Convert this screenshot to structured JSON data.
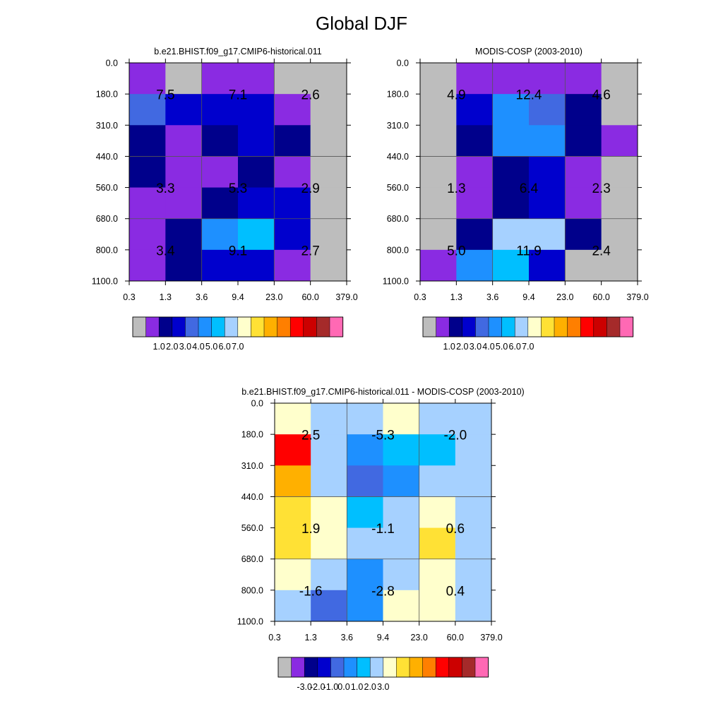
{
  "page": {
    "title": "Global DJF"
  },
  "palette": [
    "#BDBDBD",
    "#8A2BE2",
    "#00008B",
    "#0000CD",
    "#4169E1",
    "#1E90FF",
    "#00BFFF",
    "#A6D1FF",
    "#FFFFCC",
    "#FFE135",
    "#FFB000",
    "#FF7F00",
    "#FF0000",
    "#CC0000",
    "#A52A2A",
    "#FF69B4"
  ],
  "chart_data": [
    {
      "type": "heatmap",
      "title": "b.e21.BHIST.f09_g17.CMIP6-historical.011",
      "x_tick_labels": [
        "0.3",
        "1.3",
        "3.6",
        "9.4",
        "23.0",
        "60.0",
        "379.0"
      ],
      "y_tick_labels": [
        "0.0",
        "180.0",
        "310.0",
        "440.0",
        "560.0",
        "680.0",
        "800.0",
        "1100.0"
      ],
      "cell_color_index_rows_top_to_bottom": [
        [
          1,
          0,
          1,
          1,
          0,
          0
        ],
        [
          4,
          3,
          3,
          3,
          1,
          0
        ],
        [
          2,
          1,
          2,
          3,
          2,
          0
        ],
        [
          2,
          1,
          1,
          2,
          1,
          0
        ],
        [
          1,
          1,
          2,
          3,
          3,
          0
        ],
        [
          1,
          2,
          5,
          6,
          3,
          0
        ],
        [
          1,
          2,
          3,
          3,
          1,
          0
        ]
      ],
      "box_labels": [
        [
          "7.5",
          "7.1",
          "2.6"
        ],
        [
          "3.3",
          "5.3",
          "2.9"
        ],
        [
          "3.4",
          "9.1",
          "2.7"
        ]
      ],
      "colorbar": {
        "ticks": [
          "1.0",
          "2.0",
          "3.0",
          "4.0",
          "5.0",
          "6.0",
          "7.0"
        ]
      }
    },
    {
      "type": "heatmap",
      "title": "MODIS-COSP (2003-2010)",
      "x_tick_labels": [
        "0.3",
        "1.3",
        "3.6",
        "9.4",
        "23.0",
        "60.0",
        "379.0"
      ],
      "y_tick_labels": [
        "0.0",
        "180.0",
        "310.0",
        "440.0",
        "560.0",
        "680.0",
        "800.0",
        "1100.0"
      ],
      "cell_color_index_rows_top_to_bottom": [
        [
          0,
          1,
          1,
          1,
          1,
          0
        ],
        [
          0,
          3,
          5,
          4,
          2,
          0
        ],
        [
          0,
          2,
          5,
          5,
          2,
          1
        ],
        [
          0,
          1,
          2,
          3,
          1,
          0
        ],
        [
          0,
          1,
          2,
          3,
          1,
          0
        ],
        [
          0,
          2,
          7,
          7,
          2,
          0
        ],
        [
          1,
          5,
          6,
          3,
          0,
          0
        ]
      ],
      "box_labels": [
        [
          "4.9",
          "12.4",
          "4.6"
        ],
        [
          "1.3",
          "6.4",
          "2.3"
        ],
        [
          "5.0",
          "11.9",
          "2.4"
        ]
      ],
      "colorbar": {
        "ticks": [
          "1.0",
          "2.0",
          "3.0",
          "4.0",
          "5.0",
          "6.0",
          "7.0"
        ]
      }
    },
    {
      "type": "heatmap",
      "title": "b.e21.BHIST.f09_g17.CMIP6-historical.011 - MODIS-COSP (2003-2010)",
      "x_tick_labels": [
        "0.3",
        "1.3",
        "3.6",
        "9.4",
        "23.0",
        "60.0",
        "379.0"
      ],
      "y_tick_labels": [
        "0.0",
        "180.0",
        "310.0",
        "440.0",
        "560.0",
        "680.0",
        "800.0",
        "1100.0"
      ],
      "cell_color_index_rows_top_to_bottom": [
        [
          8,
          7,
          7,
          8,
          7,
          7
        ],
        [
          12,
          7,
          5,
          6,
          6,
          7
        ],
        [
          10,
          7,
          4,
          5,
          7,
          7
        ],
        [
          9,
          8,
          6,
          7,
          8,
          7
        ],
        [
          9,
          8,
          7,
          7,
          9,
          7
        ],
        [
          8,
          7,
          5,
          7,
          8,
          7
        ],
        [
          7,
          4,
          5,
          8,
          8,
          7
        ]
      ],
      "box_labels": [
        [
          "2.5",
          "-5.3",
          "-2.0"
        ],
        [
          "1.9",
          "-1.1",
          "0.6"
        ],
        [
          "-1.6",
          "-2.8",
          "0.4"
        ]
      ],
      "colorbar": {
        "ticks": [
          "-3.0",
          "-2.0",
          "-1.0",
          "0.0",
          "1.0",
          "2.0",
          "3.0"
        ]
      }
    }
  ]
}
